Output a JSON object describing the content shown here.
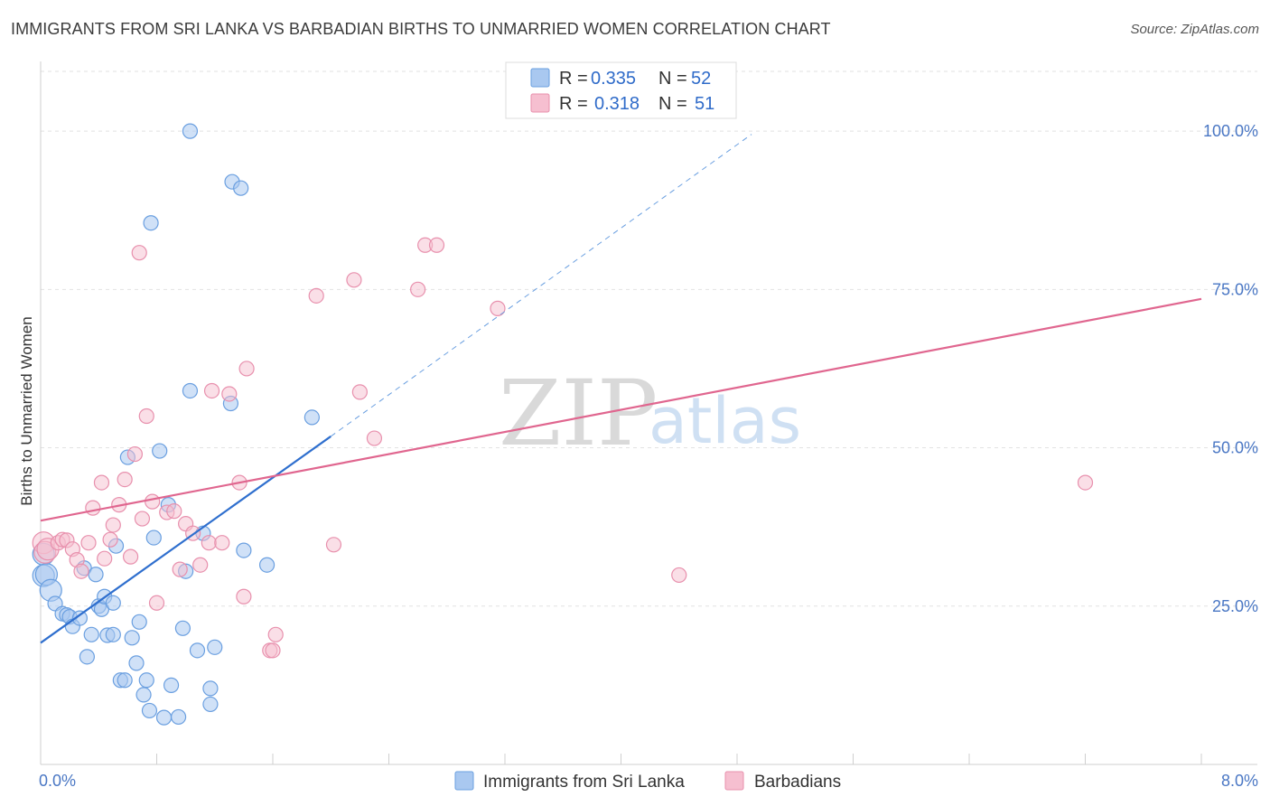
{
  "header": {
    "title": "IMMIGRANTS FROM SRI LANKA VS BARBADIAN BIRTHS TO UNMARRIED WOMEN CORRELATION CHART",
    "source": "Source: ZipAtlas.com"
  },
  "watermark": {
    "zip": "ZIP",
    "atlas": "atlas"
  },
  "legend": {
    "r_label": "R =",
    "n_label": "N =",
    "entries": [
      {
        "r": "0.335",
        "n": "52"
      },
      {
        "r": "0.318",
        "n": "51"
      }
    ]
  },
  "colors": {
    "blue_fill": "#a9c8f0",
    "blue_stroke": "#6a9fe0",
    "blue_line": "#2f6fce",
    "pink_fill": "#f6bfd0",
    "pink_stroke": "#e890ad",
    "pink_line": "#e0668f"
  },
  "chart_data": {
    "type": "scatter",
    "xlabel": "",
    "ylabel": "Births to Unmarried Women",
    "xlim": [
      0,
      8
    ],
    "ylim": [
      0,
      100
    ],
    "x_tick_labels": [
      "0.0%",
      "8.0%"
    ],
    "y_ticks": [
      25,
      50,
      75,
      100
    ],
    "y_tick_labels": [
      "25.0%",
      "50.0%",
      "75.0%",
      "100.0%"
    ],
    "legend_placement": "top-center",
    "grid": true,
    "series": [
      {
        "name": "Immigrants from Sri Lanka",
        "color": "#a9c8f0",
        "trend": {
          "x0": 0,
          "y0": 19.2,
          "x1": 2.0,
          "y1": 51.8,
          "extend_x": 4.9,
          "extend_y": 99.5
        },
        "points": [
          [
            0.02,
            29.8
          ],
          [
            0.02,
            33.2
          ],
          [
            0.04,
            30.0
          ],
          [
            0.07,
            27.5
          ],
          [
            0.1,
            25.4
          ],
          [
            0.15,
            23.8
          ],
          [
            0.18,
            23.6
          ],
          [
            0.2,
            23.3
          ],
          [
            0.22,
            21.8
          ],
          [
            0.27,
            23.1
          ],
          [
            0.3,
            31.0
          ],
          [
            0.32,
            17.0
          ],
          [
            0.35,
            20.5
          ],
          [
            0.38,
            30.0
          ],
          [
            0.4,
            25.0
          ],
          [
            0.42,
            24.5
          ],
          [
            0.44,
            26.5
          ],
          [
            0.46,
            20.4
          ],
          [
            0.5,
            20.5
          ],
          [
            0.5,
            25.5
          ],
          [
            0.52,
            34.5
          ],
          [
            0.55,
            13.3
          ],
          [
            0.58,
            13.3
          ],
          [
            0.6,
            48.5
          ],
          [
            0.63,
            20.0
          ],
          [
            0.66,
            16.0
          ],
          [
            0.68,
            22.5
          ],
          [
            0.71,
            11.0
          ],
          [
            0.73,
            13.3
          ],
          [
            0.75,
            8.5
          ],
          [
            0.78,
            35.8
          ],
          [
            0.82,
            49.5
          ],
          [
            0.85,
            7.4
          ],
          [
            0.88,
            41.0
          ],
          [
            0.9,
            12.5
          ],
          [
            0.95,
            7.5
          ],
          [
            0.98,
            21.5
          ],
          [
            1.03,
            59.0
          ],
          [
            1.08,
            18.0
          ],
          [
            1.12,
            36.5
          ],
          [
            1.17,
            12.0
          ],
          [
            1.17,
            9.5
          ],
          [
            1.2,
            18.5
          ],
          [
            1.31,
            57.0
          ],
          [
            1.32,
            92.0
          ],
          [
            1.38,
            91.0
          ],
          [
            1.4,
            33.8
          ],
          [
            1.56,
            31.5
          ],
          [
            1.87,
            54.8
          ],
          [
            1.03,
            100.0
          ],
          [
            0.76,
            85.5
          ],
          [
            1.0,
            30.5
          ]
        ]
      },
      {
        "name": "Barbadians",
        "color": "#f6bfd0",
        "trend": {
          "x0": 0,
          "y0": 38.5,
          "x1": 8.0,
          "y1": 73.5
        },
        "points": [
          [
            0.02,
            35.0
          ],
          [
            0.03,
            33.5
          ],
          [
            0.05,
            34.0
          ],
          [
            0.12,
            35.0
          ],
          [
            0.15,
            35.5
          ],
          [
            0.18,
            35.4
          ],
          [
            0.22,
            34.0
          ],
          [
            0.25,
            32.3
          ],
          [
            0.28,
            30.5
          ],
          [
            0.33,
            35.0
          ],
          [
            0.36,
            40.5
          ],
          [
            0.42,
            44.5
          ],
          [
            0.44,
            32.5
          ],
          [
            0.48,
            35.5
          ],
          [
            0.5,
            37.8
          ],
          [
            0.54,
            41.0
          ],
          [
            0.58,
            45.0
          ],
          [
            0.62,
            32.8
          ],
          [
            0.65,
            49.0
          ],
          [
            0.68,
            80.8
          ],
          [
            0.7,
            38.8
          ],
          [
            0.73,
            55.0
          ],
          [
            0.77,
            41.5
          ],
          [
            0.8,
            25.5
          ],
          [
            0.87,
            39.8
          ],
          [
            0.92,
            40.0
          ],
          [
            0.96,
            30.8
          ],
          [
            1.0,
            38.0
          ],
          [
            1.05,
            36.5
          ],
          [
            1.1,
            31.5
          ],
          [
            1.16,
            35.0
          ],
          [
            1.18,
            59.0
          ],
          [
            1.25,
            35.0
          ],
          [
            1.3,
            58.5
          ],
          [
            1.37,
            44.5
          ],
          [
            1.4,
            26.5
          ],
          [
            1.42,
            62.5
          ],
          [
            1.58,
            18.0
          ],
          [
            1.6,
            18.0
          ],
          [
            1.62,
            20.5
          ],
          [
            1.9,
            74.0
          ],
          [
            2.02,
            34.7
          ],
          [
            2.16,
            76.5
          ],
          [
            2.2,
            58.8
          ],
          [
            2.3,
            51.5
          ],
          [
            2.6,
            75.0
          ],
          [
            2.65,
            82.0
          ],
          [
            2.73,
            82.0
          ],
          [
            3.15,
            72.0
          ],
          [
            4.4,
            29.9
          ],
          [
            7.2,
            44.5
          ]
        ]
      }
    ]
  },
  "bottom_legend": [
    {
      "label": "Immigrants from Sri Lanka"
    },
    {
      "label": "Barbadians"
    }
  ]
}
